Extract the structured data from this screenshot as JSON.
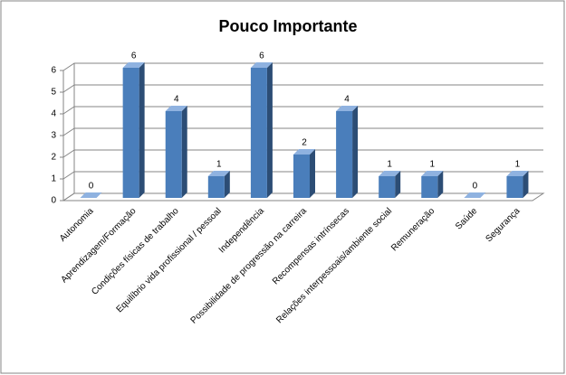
{
  "chart_data": {
    "type": "bar3d",
    "title": "Pouco Importante",
    "categories": [
      "Autonomia",
      "Aprendizagem/Formação",
      "Condições físicas de trabalho",
      "Equilíbrio vida profissional  / pessoal",
      "Independência",
      "Possibilidade de progressão na carreira",
      "Recompensas intrínsecas",
      "Relações interpessoais/ambiente social",
      "Remuneração",
      "Saúde",
      "Segurança"
    ],
    "values": [
      0,
      6,
      4,
      1,
      6,
      2,
      4,
      1,
      1,
      0,
      1
    ],
    "color": "#4a7ebb",
    "ylim": [
      0,
      6
    ],
    "yticks": [
      0,
      1,
      2,
      3,
      4,
      5,
      6
    ],
    "grid": true
  }
}
